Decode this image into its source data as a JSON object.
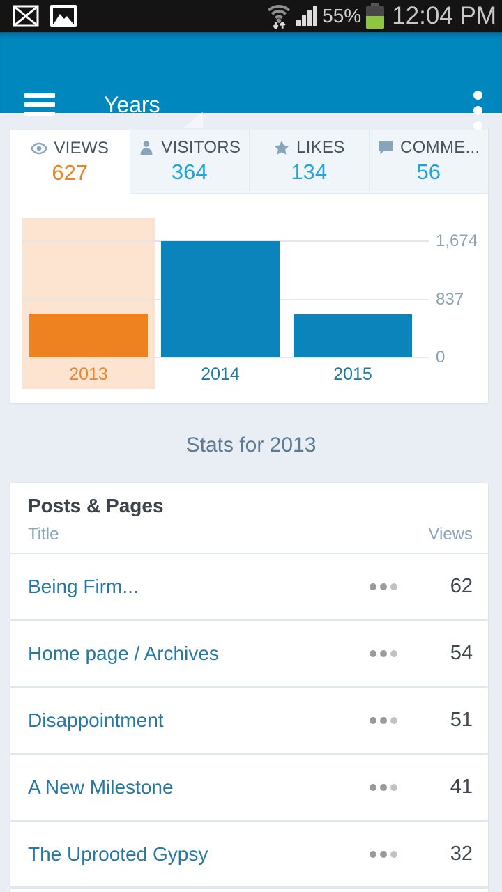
{
  "status_bar": {
    "time": "12:04 PM",
    "battery_percent": "55%",
    "battery_fill_pct": 55,
    "battery_color": "#8dc63f",
    "icons": [
      "email-notification-icon",
      "gallery-notification-icon",
      "wifi-icon",
      "signal-strength-icon",
      "battery-icon"
    ]
  },
  "header": {
    "title": "Years",
    "background_color": "#0087be",
    "icons": [
      "hamburger-menu-icon",
      "spinner-dropdown-triangle-icon",
      "overflow-menu-icon"
    ]
  },
  "tabs": [
    {
      "label": "VIEWS",
      "value": "627",
      "icon": "eye-icon",
      "active": true,
      "value_color": "#ee8220"
    },
    {
      "label": "VISITORS",
      "value": "364",
      "icon": "person-icon",
      "active": false,
      "value_color": "#24a4da"
    },
    {
      "label": "LIKES",
      "value": "134",
      "icon": "star-icon",
      "active": false,
      "value_color": "#24a4da"
    },
    {
      "label": "COMME...",
      "value": "56",
      "icon": "speech-bubble-icon",
      "active": false,
      "value_color": "#24a4da"
    }
  ],
  "chart_data": {
    "type": "bar",
    "categories": [
      "2013",
      "2014",
      "2015"
    ],
    "values": [
      627,
      1674,
      620
    ],
    "selected_index": 0,
    "selected_category": "2013",
    "y_ticks": [
      {
        "label": "1,674",
        "value": 1674
      },
      {
        "label": "837",
        "value": 837
      },
      {
        "label": "0",
        "value": 0
      }
    ],
    "ylim": [
      0,
      1674
    ],
    "grid": true,
    "tick_side": "right",
    "legend": "none",
    "series_color": "#0a84bb",
    "selected_color": "#ee8220",
    "highlight_color": "#fce4d1",
    "selected_label_color": "#e8872f",
    "label_color": "#1d7aa2"
  },
  "section_heading": "Stats for 2013",
  "posts_card": {
    "title": "Posts & Pages",
    "columns": {
      "title": "Title",
      "views": "Views"
    },
    "rows": [
      {
        "title": "Being Firm...",
        "views": "62"
      },
      {
        "title": "Home page / Archives",
        "views": "54"
      },
      {
        "title": "Disappointment",
        "views": "51"
      },
      {
        "title": "A New Milestone",
        "views": "41"
      },
      {
        "title": "The Uprooted Gypsy",
        "views": "32"
      }
    ],
    "row_menu_icon": "ellipsis-icon"
  },
  "colors": {
    "page_background": "#e8eef4",
    "card_background": "#ffffff",
    "accent_orange": "#ee8220",
    "accent_blue": "#24a4da",
    "link_blue": "#2779a3",
    "muted_blue_gray": "#87a6bc"
  }
}
